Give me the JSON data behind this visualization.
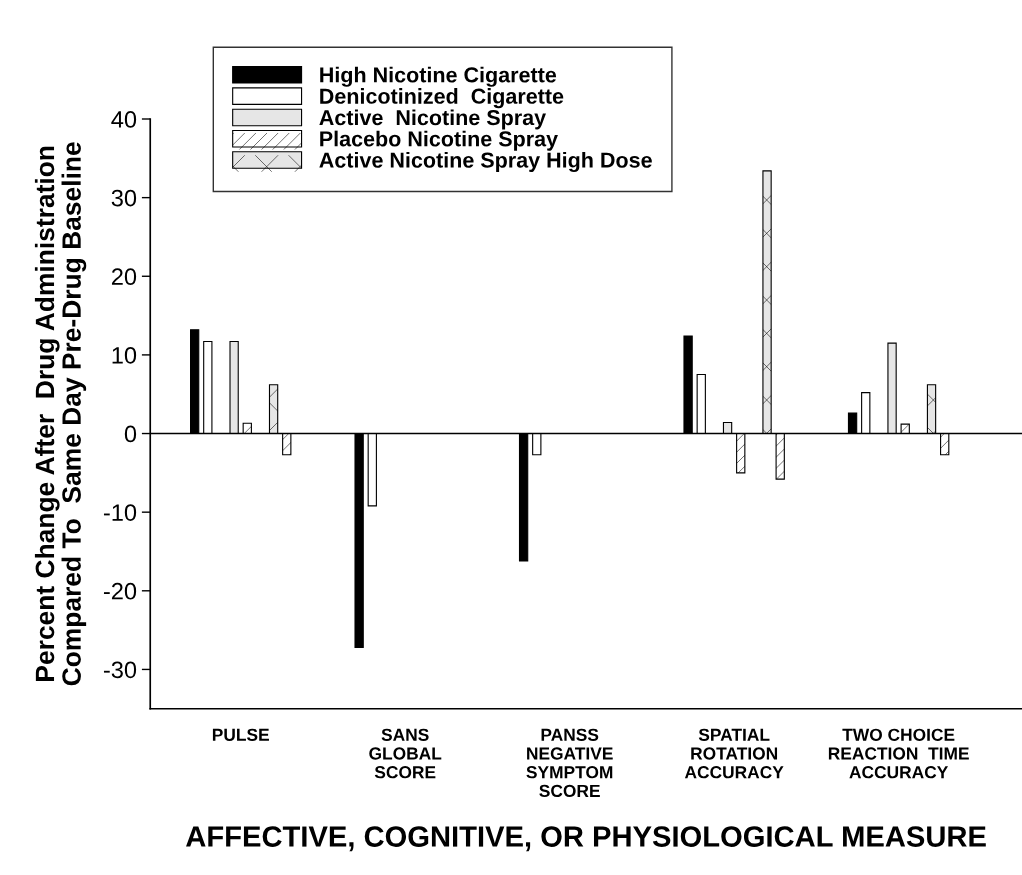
{
  "chart_data": {
    "type": "bar",
    "categories": [
      "PULSE",
      "SANS\nGLOBAL\nSCORE",
      "PANSS\nNEGATIVE\nSYMPTOM\nSCORE",
      "SPATIAL\nROTATION\nACCURACY",
      "TWO CHOICE\nREACTION  TIME\nACCURACY"
    ],
    "series": [
      {
        "name": "High Nicotine Cigarette",
        "color": "#000000",
        "values": [
          13.2,
          -27.2,
          -16.2,
          12.4,
          2.6
        ]
      },
      {
        "name": "Denicotinized  Cigarette",
        "color": "#ffffff",
        "values": [
          11.7,
          -9.2,
          -2.7,
          7.5,
          5.2
        ]
      },
      {
        "name": "Active  Nicotine Spray",
        "color": "#e6e6e6",
        "values": [
          11.7,
          null,
          null,
          1.4,
          11.5
        ]
      },
      {
        "name": "Placebo Nicotine Spray",
        "color": "#ffffff",
        "values": [
          1.3,
          null,
          null,
          -5.0,
          1.2
        ]
      },
      {
        "name": "Active Nicotine Spray High Dose",
        "color": "#e6e6e6",
        "values": [
          6.2,
          null,
          null,
          33.4,
          6.2
        ]
      },
      {
        "color": "#ffffff",
        "values": [
          -2.7,
          null,
          null,
          -5.8,
          -2.7
        ]
      }
    ],
    "ylabel": "Percent Change After  Drug Administration\nCompared To  Same Day Pre-Drug Baseline",
    "xlabel": "AFFECTIVE, COGNITIVE, OR PHYSIOLOGICAL MEASURE",
    "ylim": [
      -35,
      40
    ],
    "yticks": [
      -30,
      -20,
      -10,
      0,
      10,
      20,
      30,
      40
    ],
    "ref_lines": [
      {
        "axis": "y",
        "value": 0
      }
    ],
    "legend": "top left",
    "grid": false
  }
}
